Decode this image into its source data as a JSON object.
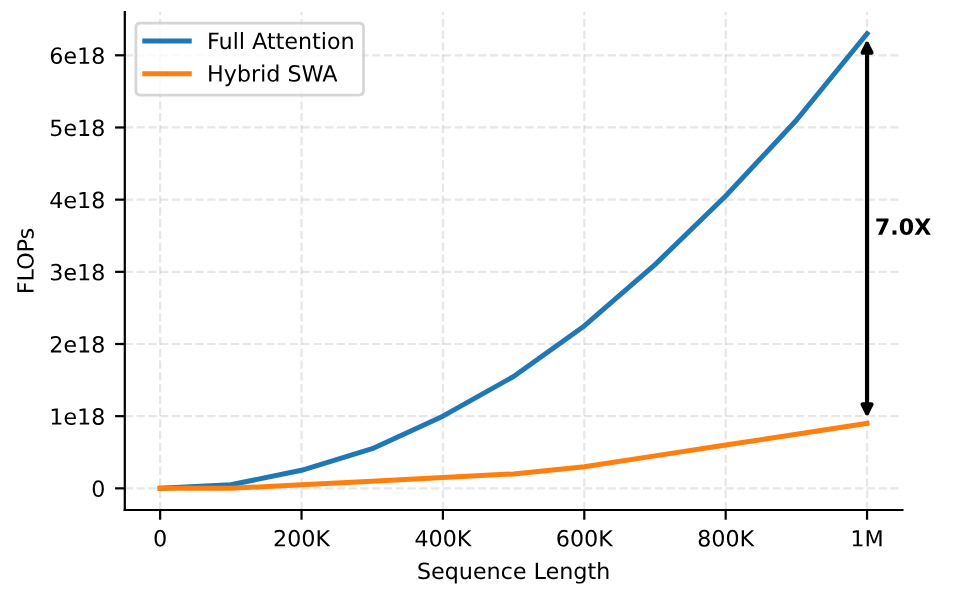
{
  "chart_data": {
    "type": "line",
    "xlabel": "Sequence Length",
    "ylabel": "FLOPs",
    "x": [
      0,
      100000,
      200000,
      300000,
      400000,
      500000,
      600000,
      700000,
      800000,
      900000,
      1000000
    ],
    "series": [
      {
        "name": "Full Attention",
        "color": "#1f77b4",
        "values": [
          0,
          5e+16,
          2.5e+17,
          5.5e+17,
          1e+18,
          1.55e+18,
          2.25e+18,
          3.1e+18,
          4.05e+18,
          5.1e+18,
          6.3e+18
        ]
      },
      {
        "name": "Hybrid SWA",
        "color": "#ff7f0e",
        "values": [
          0,
          0,
          5e+16,
          1e+17,
          1.5e+17,
          2e+17,
          3e+17,
          4.5e+17,
          6e+17,
          7.5e+17,
          9e+17
        ]
      }
    ],
    "xlim": [
      -50000,
      1050000
    ],
    "xticks": [
      0,
      {
        "value": 200000,
        "label": "200K"
      },
      {
        "value": 400000,
        "label": "400K"
      },
      {
        "value": 600000,
        "label": "600K"
      },
      {
        "value": 800000,
        "label": "800K"
      },
      {
        "value": 1000000,
        "label": "1M"
      }
    ],
    "ylim": [
      -3e+17,
      6.6e+18
    ],
    "yticks": [
      0,
      {
        "value": 1e+18,
        "label": "1e18"
      },
      {
        "value": 2e+18,
        "label": "2e18"
      },
      {
        "value": 3e+18,
        "label": "3e18"
      },
      {
        "value": 4e+18,
        "label": "4e18"
      },
      {
        "value": 5e+18,
        "label": "5e18"
      },
      {
        "value": 6e+18,
        "label": "6e18"
      }
    ],
    "annotations": [
      "7.0X"
    ],
    "grid": true,
    "legend": "top left",
    "marker": "none",
    "line_style": "solid"
  }
}
